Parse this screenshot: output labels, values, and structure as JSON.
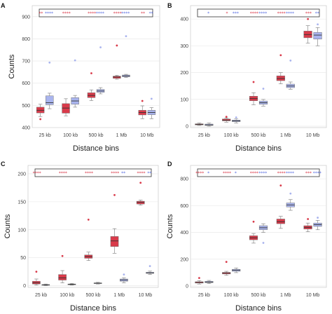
{
  "chart_data": [
    {
      "panel": "A",
      "type": "boxplot",
      "categories": [
        "25 kb",
        "100 kb",
        "500 kb",
        "1 Mb",
        "10 Mb"
      ],
      "xlabel": "Distance bins",
      "ylabel": "Counts",
      "ylim": [
        400,
        950
      ],
      "yticks": [
        400,
        500,
        600,
        700,
        800,
        900
      ],
      "colors": {
        "red": "#d93a4a",
        "blue": "#a9b4ee"
      },
      "significance": {
        "red": [
          "**",
          "****",
          "****",
          "****",
          "**"
        ],
        "blue": [
          "****",
          "",
          "****",
          "****",
          "**"
        ]
      },
      "series": [
        {
          "color": "red",
          "boxes": [
            {
              "whislo": 450,
              "q1": 466,
              "med": 478,
              "q3": 492,
              "whishi": 505,
              "fliers": [
                438
              ]
            },
            {
              "whislo": 453,
              "q1": 465,
              "med": 488,
              "q3": 508,
              "whishi": 530,
              "fliers": []
            },
            {
              "whislo": 522,
              "q1": 535,
              "med": 545,
              "q3": 557,
              "whishi": 570,
              "fliers": [
                645
              ]
            },
            {
              "whislo": 618,
              "q1": 622,
              "med": 628,
              "q3": 632,
              "whishi": 636,
              "fliers": [
                770
              ]
            },
            {
              "whislo": 440,
              "q1": 457,
              "med": 468,
              "q3": 478,
              "whishi": 498,
              "fliers": [
                520
              ]
            }
          ]
        },
        {
          "color": "blue",
          "boxes": [
            {
              "whislo": 485,
              "q1": 503,
              "med": 512,
              "q3": 543,
              "whishi": 555,
              "fliers": [
                693
              ]
            },
            {
              "whislo": 492,
              "q1": 505,
              "med": 520,
              "q3": 535,
              "whishi": 545,
              "fliers": [
                703
              ]
            },
            {
              "whislo": 552,
              "q1": 559,
              "med": 565,
              "q3": 572,
              "whishi": 580,
              "fliers": [
                762
              ]
            },
            {
              "whislo": 626,
              "q1": 629,
              "med": 633,
              "q3": 637,
              "whishi": 640,
              "fliers": [
                812
              ]
            },
            {
              "whislo": 440,
              "q1": 458,
              "med": 468,
              "q3": 478,
              "whishi": 490,
              "fliers": [
                530
              ]
            }
          ]
        }
      ]
    },
    {
      "panel": "B",
      "type": "boxplot",
      "categories": [
        "25 kb",
        "100 kb",
        "500 kb",
        "1 Mb",
        "10 Mb"
      ],
      "xlabel": "Distance bins",
      "ylabel": "",
      "ylim": [
        -5,
        450
      ],
      "yticks": [
        0,
        100,
        200,
        300,
        400
      ],
      "colors": {
        "red": "#d93a4a",
        "blue": "#a9b4ee"
      },
      "significance": {
        "red": [
          "",
          "*",
          "****",
          "****",
          "***"
        ],
        "blue": [
          "*",
          "***",
          "****",
          "****",
          "**"
        ]
      },
      "series": [
        {
          "color": "red",
          "boxes": [
            {
              "whislo": 3,
              "q1": 5,
              "med": 7,
              "q3": 9,
              "whishi": 12,
              "fliers": []
            },
            {
              "whislo": 15,
              "q1": 20,
              "med": 23,
              "q3": 27,
              "whishi": 30,
              "fliers": [
                35
              ]
            },
            {
              "whislo": 80,
              "q1": 95,
              "med": 103,
              "q3": 112,
              "whishi": 125,
              "fliers": [
                165
              ]
            },
            {
              "whislo": 158,
              "q1": 170,
              "med": 178,
              "q3": 188,
              "whishi": 200,
              "fliers": [
                265
              ]
            },
            {
              "whislo": 310,
              "q1": 330,
              "med": 342,
              "q3": 355,
              "whishi": 375,
              "fliers": [
                400
              ]
            }
          ]
        },
        {
          "color": "blue",
          "boxes": [
            {
              "whislo": 0,
              "q1": 3,
              "med": 5,
              "q3": 8,
              "whishi": 12,
              "fliers": []
            },
            {
              "whislo": 12,
              "q1": 17,
              "med": 20,
              "q3": 23,
              "whishi": 27,
              "fliers": [
                33
              ]
            },
            {
              "whislo": 75,
              "q1": 82,
              "med": 88,
              "q3": 94,
              "whishi": 100,
              "fliers": [
                140
              ]
            },
            {
              "whislo": 138,
              "q1": 144,
              "med": 150,
              "q3": 157,
              "whishi": 165,
              "fliers": [
                245
              ]
            },
            {
              "whislo": 300,
              "q1": 325,
              "med": 340,
              "q3": 350,
              "whishi": 368,
              "fliers": [
                380
              ]
            }
          ]
        }
      ]
    },
    {
      "panel": "C",
      "type": "boxplot",
      "categories": [
        "25 kb",
        "100 kb",
        "500 kb",
        "1 Mb",
        "10 Mb"
      ],
      "xlabel": "Distance bins",
      "ylabel": "Counts",
      "ylim": [
        -3,
        215
      ],
      "yticks": [
        0,
        50,
        100,
        150,
        200
      ],
      "colors": {
        "red": "#d93a4a",
        "blue": "#a9b4ee"
      },
      "significance": {
        "red": [
          "****",
          "****",
          "****",
          "****",
          "****"
        ],
        "blue": [
          "",
          "",
          "",
          "**",
          "**"
        ]
      },
      "series": [
        {
          "color": "red",
          "boxes": [
            {
              "whislo": 1,
              "q1": 3,
              "med": 5,
              "q3": 8,
              "whishi": 12,
              "fliers": [
                25
              ]
            },
            {
              "whislo": 5,
              "q1": 10,
              "med": 14,
              "q3": 20,
              "whishi": 27,
              "fliers": [
                53
              ]
            },
            {
              "whislo": 45,
              "q1": 49,
              "med": 52,
              "q3": 55,
              "whishi": 60,
              "fliers": [
                118
              ]
            },
            {
              "whislo": 58,
              "q1": 70,
              "med": 80,
              "q3": 88,
              "whishi": 102,
              "fliers": [
                162
              ]
            },
            {
              "whislo": 144,
              "q1": 146,
              "med": 149,
              "q3": 151,
              "whishi": 153,
              "fliers": [
                184
              ]
            }
          ]
        },
        {
          "color": "blue",
          "boxes": [
            {
              "whislo": 0,
              "q1": 1,
              "med": 1.5,
              "q3": 2,
              "whishi": 3,
              "fliers": []
            },
            {
              "whislo": 1,
              "q1": 2,
              "med": 2.5,
              "q3": 3,
              "whishi": 4,
              "fliers": []
            },
            {
              "whislo": 3,
              "q1": 4,
              "med": 4.5,
              "q3": 5,
              "whishi": 6,
              "fliers": []
            },
            {
              "whislo": 5,
              "q1": 8,
              "med": 10,
              "q3": 12,
              "whishi": 14,
              "fliers": [
                20
              ]
            },
            {
              "whislo": 20,
              "q1": 22,
              "med": 23,
              "q3": 24,
              "whishi": 26,
              "fliers": [
                35
              ]
            }
          ]
        }
      ]
    },
    {
      "panel": "D",
      "type": "boxplot",
      "categories": [
        "25 kb",
        "100 kb",
        "500 kb",
        "1 Mb",
        "10 Mb"
      ],
      "xlabel": "Distance bins",
      "ylabel": "Counts",
      "ylim": [
        -10,
        900
      ],
      "yticks": [
        0,
        200,
        400,
        600,
        800
      ],
      "colors": {
        "red": "#d93a4a",
        "blue": "#a9b4ee"
      },
      "significance": {
        "red": [
          "****",
          "****",
          "****",
          "****",
          "***"
        ],
        "blue": [
          "*",
          "*",
          "****",
          "****",
          "****"
        ]
      },
      "series": [
        {
          "color": "red",
          "boxes": [
            {
              "whislo": 15,
              "q1": 22,
              "med": 27,
              "q3": 32,
              "whishi": 40,
              "fliers": [
                60
              ]
            },
            {
              "whislo": 80,
              "q1": 90,
              "med": 96,
              "q3": 102,
              "whishi": 110,
              "fliers": [
                180
              ]
            },
            {
              "whislo": 320,
              "q1": 345,
              "med": 360,
              "q3": 375,
              "whishi": 392,
              "fliers": [
                480
              ]
            },
            {
              "whislo": 430,
              "q1": 465,
              "med": 480,
              "q3": 500,
              "whishi": 520,
              "fliers": [
                750
              ]
            },
            {
              "whislo": 405,
              "q1": 425,
              "med": 438,
              "q3": 450,
              "whishi": 470,
              "fliers": [
                500
              ]
            }
          ]
        },
        {
          "color": "blue",
          "boxes": [
            {
              "whislo": 18,
              "q1": 25,
              "med": 30,
              "q3": 35,
              "whishi": 42,
              "fliers": []
            },
            {
              "whislo": 100,
              "q1": 110,
              "med": 118,
              "q3": 125,
              "whishi": 135,
              "fliers": []
            },
            {
              "whislo": 400,
              "q1": 420,
              "med": 435,
              "q3": 450,
              "whishi": 465,
              "fliers": [
                322
              ]
            },
            {
              "whislo": 565,
              "q1": 590,
              "med": 605,
              "q3": 620,
              "whishi": 645,
              "fliers": [
                690
              ]
            },
            {
              "whislo": 420,
              "q1": 445,
              "med": 458,
              "q3": 470,
              "whishi": 490,
              "fliers": [
                510
              ]
            }
          ]
        }
      ]
    }
  ]
}
